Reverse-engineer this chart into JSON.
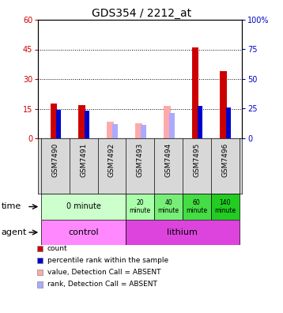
{
  "title": "GDS354 / 2212_at",
  "samples": [
    "GSM7490",
    "GSM7491",
    "GSM7492",
    "GSM7493",
    "GSM7494",
    "GSM7495",
    "GSM7496"
  ],
  "count_values": [
    17.5,
    17.0,
    0,
    0,
    0,
    46.0,
    34.0
  ],
  "percentile_values": [
    24.0,
    23.0,
    0,
    0,
    0,
    27.0,
    26.0
  ],
  "absent_value_values": [
    0,
    0,
    8.5,
    7.5,
    16.5,
    0,
    0
  ],
  "absent_rank_values": [
    0,
    0,
    12.0,
    11.0,
    21.0,
    0,
    0
  ],
  "ylim_left": [
    0,
    60
  ],
  "ylim_right": [
    0,
    100
  ],
  "yticks_left": [
    0,
    15,
    30,
    45,
    60
  ],
  "yticks_right": [
    0,
    25,
    50,
    75,
    100
  ],
  "ytick_labels_left": [
    "0",
    "15",
    "30",
    "45",
    "60"
  ],
  "ytick_labels_right": [
    "0",
    "25",
    "50",
    "75",
    "100%"
  ],
  "color_count": "#cc0000",
  "color_percentile": "#0000cc",
  "color_absent_value": "#ffaaaa",
  "color_absent_rank": "#aaaaff",
  "color_count_hex": "#cc0000",
  "color_percentile_hex": "#0000cc",
  "background_color": "#ffffff",
  "plot_bg": "#ffffff",
  "time_groups": [
    {
      "label": "0 minute",
      "cols": [
        0,
        1,
        2
      ],
      "color": "#ccffcc"
    },
    {
      "label": "20\nminute",
      "cols": [
        3
      ],
      "color": "#aaffaa"
    },
    {
      "label": "40\nminute",
      "cols": [
        4
      ],
      "color": "#77ee77"
    },
    {
      "label": "60\nminute",
      "cols": [
        5
      ],
      "color": "#44dd44"
    },
    {
      "label": "140\nminute",
      "cols": [
        6
      ],
      "color": "#22cc22"
    }
  ],
  "agent_groups": [
    {
      "label": "control",
      "cols": [
        0,
        1,
        2
      ],
      "color": "#ff88ff"
    },
    {
      "label": "lithium",
      "cols": [
        3,
        4,
        5,
        6
      ],
      "color": "#dd44dd"
    }
  ],
  "legend_items": [
    {
      "color": "#cc0000",
      "label": "count"
    },
    {
      "color": "#0000cc",
      "label": "percentile rank within the sample"
    },
    {
      "color": "#ffaaaa",
      "label": "value, Detection Call = ABSENT"
    },
    {
      "color": "#aaaaff",
      "label": "rank, Detection Call = ABSENT"
    }
  ]
}
